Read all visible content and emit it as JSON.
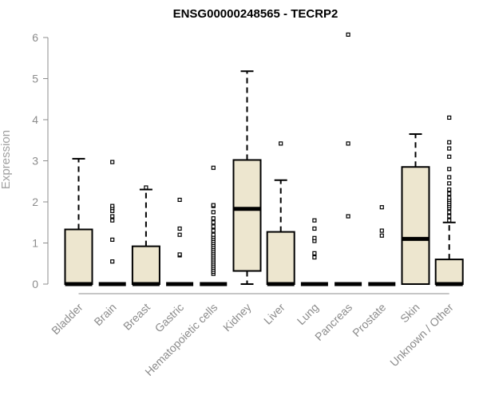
{
  "chart_data": {
    "type": "boxplot",
    "title": "ENSG00000248565 - TECRP2",
    "ylabel": "Expression",
    "xlabel": "",
    "ylim": [
      0,
      6
    ],
    "yticks": [
      0,
      1,
      2,
      3,
      4,
      5,
      6
    ],
    "categories": [
      "Bladder",
      "Brain",
      "Breast",
      "Gastric",
      "Hematopoietic cells",
      "Kidney",
      "Liver",
      "Lung",
      "Pancreas",
      "Prostate",
      "Skin",
      "Unknown / Other"
    ],
    "box_fill": "#ede6cf",
    "box_stroke": "#000000",
    "boxes": [
      {
        "q1": 0,
        "median": 0,
        "q3": 1.33,
        "whisker_low": 0,
        "whisker_high": 3.05,
        "outliers": []
      },
      {
        "q1": 0,
        "median": 0,
        "q3": 0,
        "whisker_low": 0,
        "whisker_high": 0,
        "outliers": [
          0.55,
          1.08,
          1.55,
          1.65,
          1.78,
          1.85,
          1.9,
          2.97
        ]
      },
      {
        "q1": 0,
        "median": 0,
        "q3": 0.92,
        "whisker_low": 0,
        "whisker_high": 2.3,
        "outliers": [
          2.35
        ]
      },
      {
        "q1": 0,
        "median": 0,
        "q3": 0,
        "whisker_low": 0,
        "whisker_high": 0,
        "outliers": [
          0.7,
          0.72,
          1.2,
          1.35,
          2.05
        ]
      },
      {
        "q1": 0,
        "median": 0,
        "q3": 0,
        "whisker_low": 0,
        "whisker_high": 0,
        "outliers": [
          0.25,
          0.3,
          0.35,
          0.4,
          0.45,
          0.5,
          0.55,
          0.6,
          0.65,
          0.7,
          0.75,
          0.8,
          0.85,
          0.9,
          0.95,
          1.0,
          1.05,
          1.1,
          1.15,
          1.2,
          1.3,
          1.4,
          1.5,
          1.6,
          1.75,
          1.9,
          1.92,
          2.83
        ]
      },
      {
        "q1": 0.32,
        "median": 1.83,
        "q3": 3.02,
        "whisker_low": 0,
        "whisker_high": 5.18,
        "outliers": []
      },
      {
        "q1": 0,
        "median": 0,
        "q3": 1.27,
        "whisker_low": 0,
        "whisker_high": 2.53,
        "outliers": [
          3.42
        ]
      },
      {
        "q1": 0,
        "median": 0,
        "q3": 0,
        "whisker_low": 0,
        "whisker_high": 0,
        "outliers": [
          0.65,
          0.75,
          1.05,
          1.12,
          1.35,
          1.55
        ]
      },
      {
        "q1": 0,
        "median": 0,
        "q3": 0,
        "whisker_low": 0,
        "whisker_high": 0,
        "outliers": [
          1.65,
          3.42,
          6.07
        ]
      },
      {
        "q1": 0,
        "median": 0,
        "q3": 0,
        "whisker_low": 0,
        "whisker_high": 0,
        "outliers": [
          1.18,
          1.3,
          1.87
        ]
      },
      {
        "q1": 0,
        "median": 1.1,
        "q3": 2.85,
        "whisker_low": 0,
        "whisker_high": 3.65,
        "outliers": []
      },
      {
        "q1": 0,
        "median": 0,
        "q3": 0.6,
        "whisker_low": 0,
        "whisker_high": 1.5,
        "outliers": [
          1.55,
          1.65,
          1.75,
          1.85,
          1.9,
          1.95,
          2.0,
          2.05,
          2.1,
          2.2,
          2.3,
          2.45,
          2.6,
          2.8,
          3.1,
          3.3,
          3.45,
          4.05
        ]
      }
    ]
  }
}
